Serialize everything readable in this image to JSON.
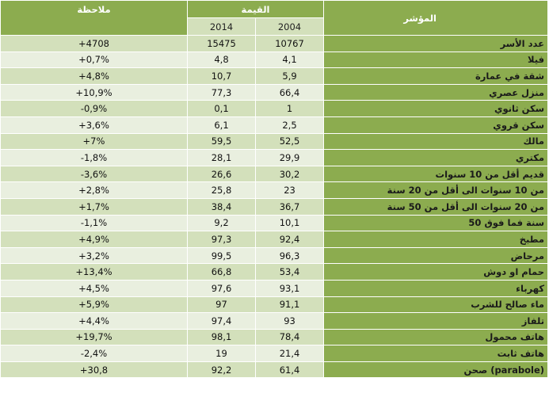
{
  "headers": {
    "note": "ملاحظة",
    "value": "القيمة",
    "indicator": "المؤشر",
    "year_a": "2014",
    "year_b": "2004"
  },
  "rows": [
    {
      "label": "عدد الأسر",
      "v2004": "10767",
      "v2014": "15475",
      "note": "+4708"
    },
    {
      "label": "فيلا",
      "v2004": "4,1",
      "v2014": "4,8",
      "note": "+0,7%"
    },
    {
      "label": "شقة في عمارة",
      "v2004": "5,9",
      "v2014": "10,7",
      "note": "+4,8%"
    },
    {
      "label": "منزل عصري",
      "v2004": "66,4",
      "v2014": "77,3",
      "note": "+10,9%"
    },
    {
      "label": "سكن ثانوي",
      "v2004": "1",
      "v2014": "0,1",
      "note": "-0,9%"
    },
    {
      "label": "سكن قروي",
      "v2004": "2,5",
      "v2014": "6,1",
      "note": "+3,6%"
    },
    {
      "label": "مالك",
      "v2004": "52,5",
      "v2014": "59,5",
      "note": "+7%"
    },
    {
      "label": "مكتري",
      "v2004": "29,9",
      "v2014": "28,1",
      "note": "-1,8%"
    },
    {
      "label": "قديم أقل من 10 سنوات",
      "v2004": "30,2",
      "v2014": "26,6",
      "note": "-3,6%"
    },
    {
      "label": "من 10 سنوات الى أقل من 20 سنة",
      "v2004": "23",
      "v2014": "25,8",
      "note": "+2,8%"
    },
    {
      "label": "من 20 سنوات الى أقل من 50 سنة",
      "v2004": "36,7",
      "v2014": "38,4",
      "note": "+1,7%"
    },
    {
      "label": "50 سنة فما فوق",
      "v2004": "10,1",
      "v2014": "9,2",
      "note": "-1,1%"
    },
    {
      "label": "مطبخ",
      "v2004": "92,4",
      "v2014": "97,3",
      "note": "+4,9%"
    },
    {
      "label": "مرحاض",
      "v2004": "96,3",
      "v2014": "99,5",
      "note": "+3,2%"
    },
    {
      "label": "حمام او دوش",
      "v2004": "53,4",
      "v2014": "66,8",
      "note": "+13,4%"
    },
    {
      "label": "كهرباء",
      "v2004": "93,1",
      "v2014": "97,6",
      "note": "+4,5%"
    },
    {
      "label": "ماء صالح للشرب",
      "v2004": "91,1",
      "v2014": "97",
      "note": "+5,9%"
    },
    {
      "label": "تلفاز",
      "v2004": "93",
      "v2014": "97,4",
      "note": "+4,4%"
    },
    {
      "label": "هاتف محمول",
      "v2004": "78,4",
      "v2014": "98,1",
      "note": "+19,7%"
    },
    {
      "label": "هاتف ثابت",
      "v2004": "21,4",
      "v2014": "19",
      "note": "-2,4%"
    },
    {
      "label": "صحن (parabole)",
      "v2004": "61,4",
      "v2014": "92,2",
      "note": "+30,8"
    }
  ]
}
